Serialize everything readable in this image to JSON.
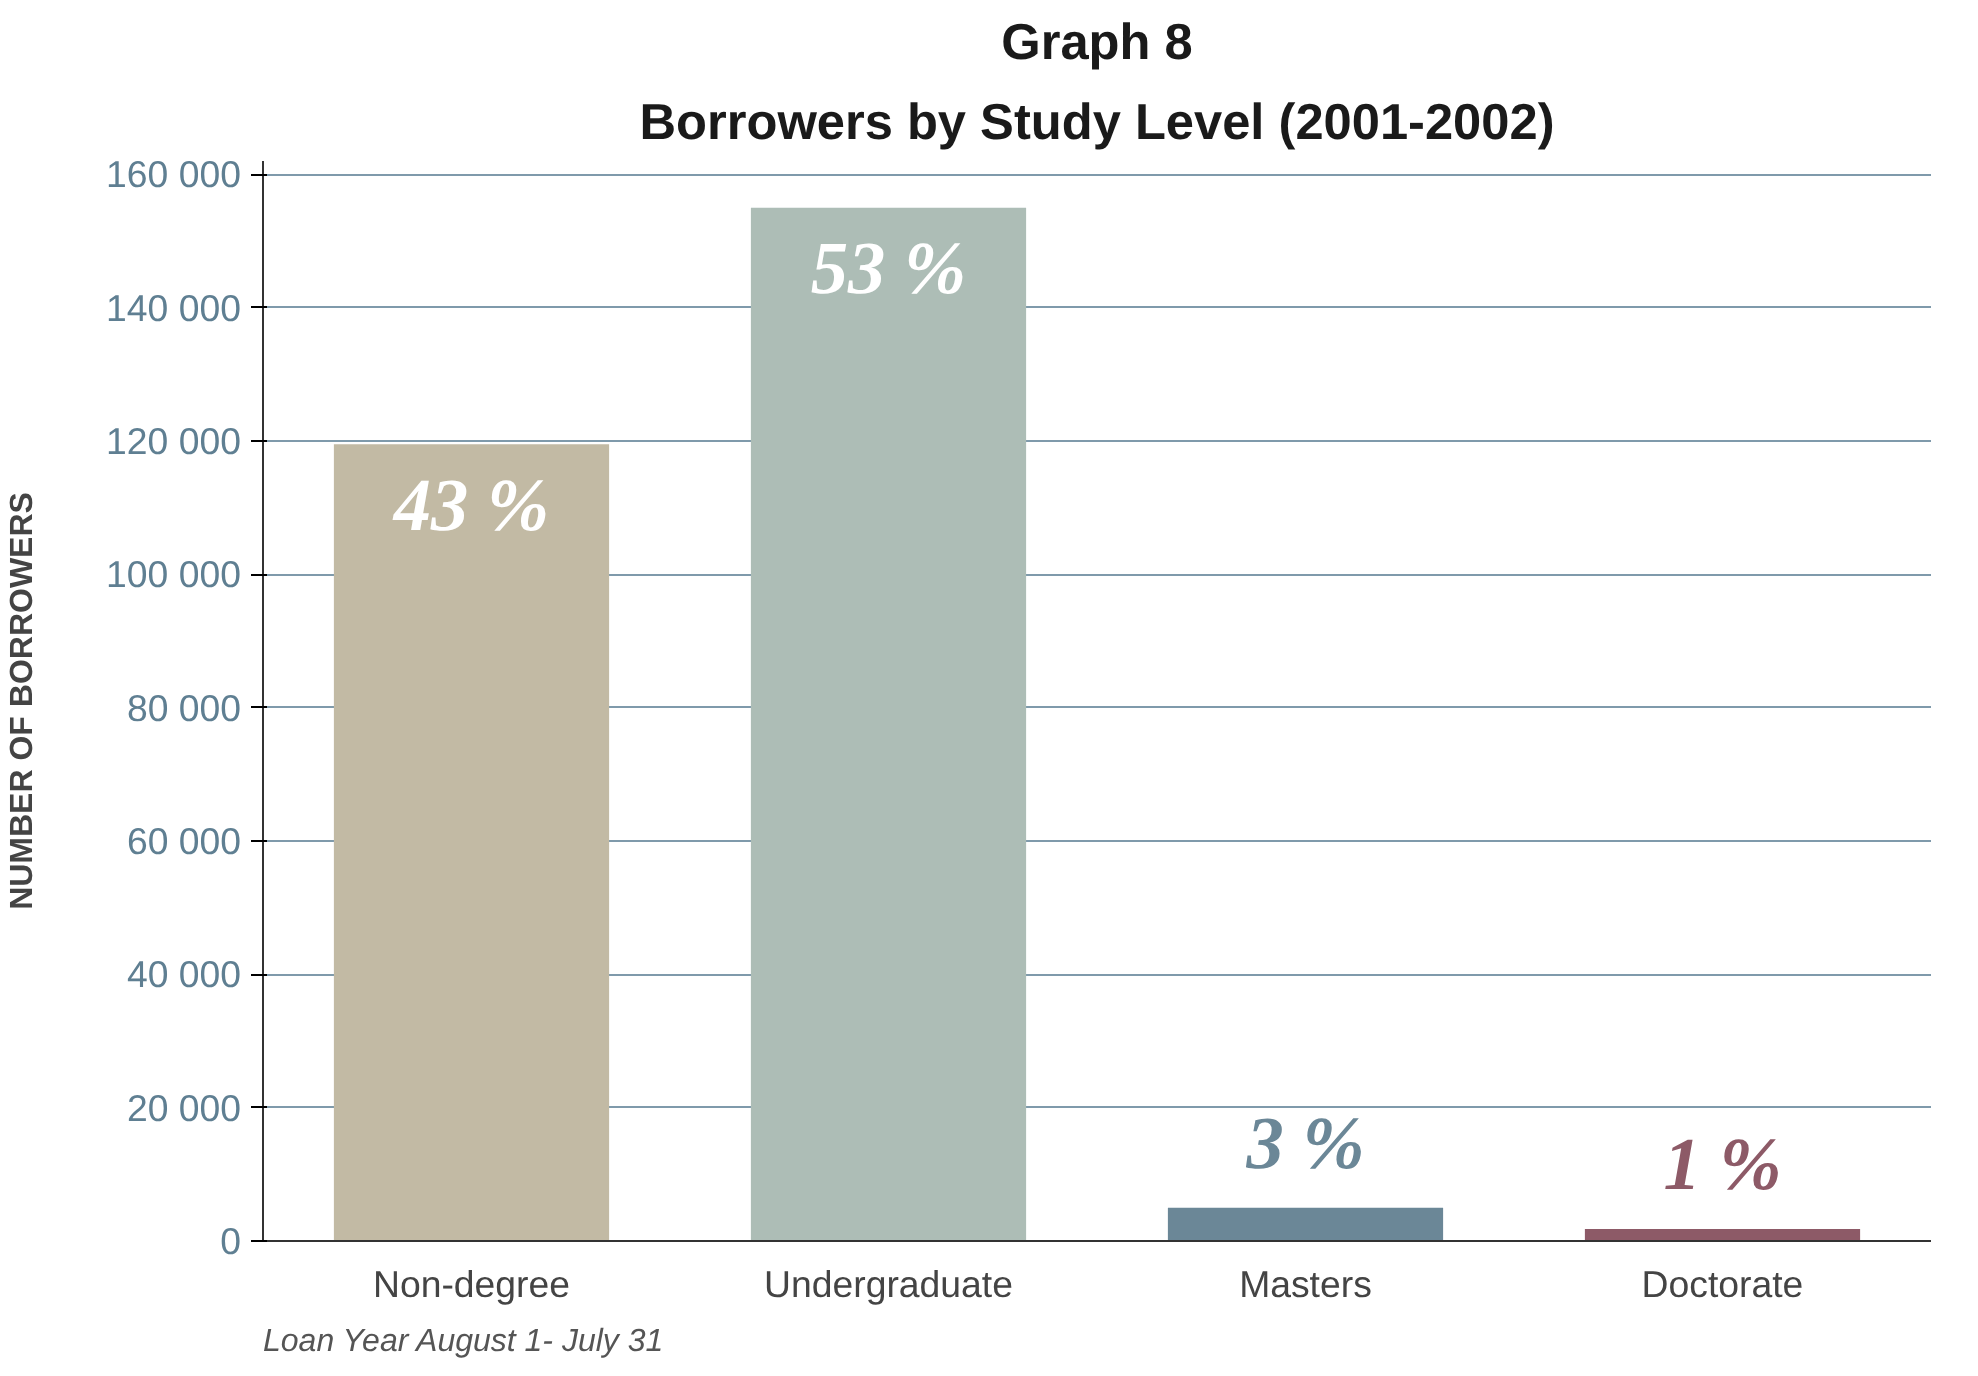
{
  "chart_data": {
    "type": "bar",
    "title": "Graph 8",
    "subtitle": "Borrowers by Study Level (2001-2002)",
    "ylabel": "NUMBER OF BORROWERS",
    "categories": [
      "Non-degree",
      "Undergraduate",
      "Masters",
      "Doctorate"
    ],
    "values": [
      119500,
      155000,
      5000,
      1800
    ],
    "colors": [
      "#c2baa4",
      "#adbdb6",
      "#6b8797",
      "#8d5a67"
    ],
    "ylim": [
      0,
      162000
    ],
    "yticks": [
      {
        "value": 0,
        "label": "0"
      },
      {
        "value": 20000,
        "label": "20 000"
      },
      {
        "value": 40000,
        "label": "40 000"
      },
      {
        "value": 60000,
        "label": "60 000"
      },
      {
        "value": 80000,
        "label": "80 000"
      },
      {
        "value": 100000,
        "label": "100 000"
      },
      {
        "value": 120000,
        "label": "120 000"
      },
      {
        "value": 140000,
        "label": "140 000"
      },
      {
        "value": 160000,
        "label": "160 000"
      }
    ],
    "grid": "y",
    "annotations": [
      {
        "text": "43 %",
        "x": "Non-degree",
        "y": 119500
      },
      {
        "text": "53 %",
        "x": "Undergraduate",
        "y": 155000
      },
      {
        "text": "3 %",
        "x": "Masters",
        "y": 5000
      },
      {
        "text": "1 %",
        "x": "Doctorate",
        "y": 1800
      },
      "Loan Year August 1- July 31"
    ]
  }
}
